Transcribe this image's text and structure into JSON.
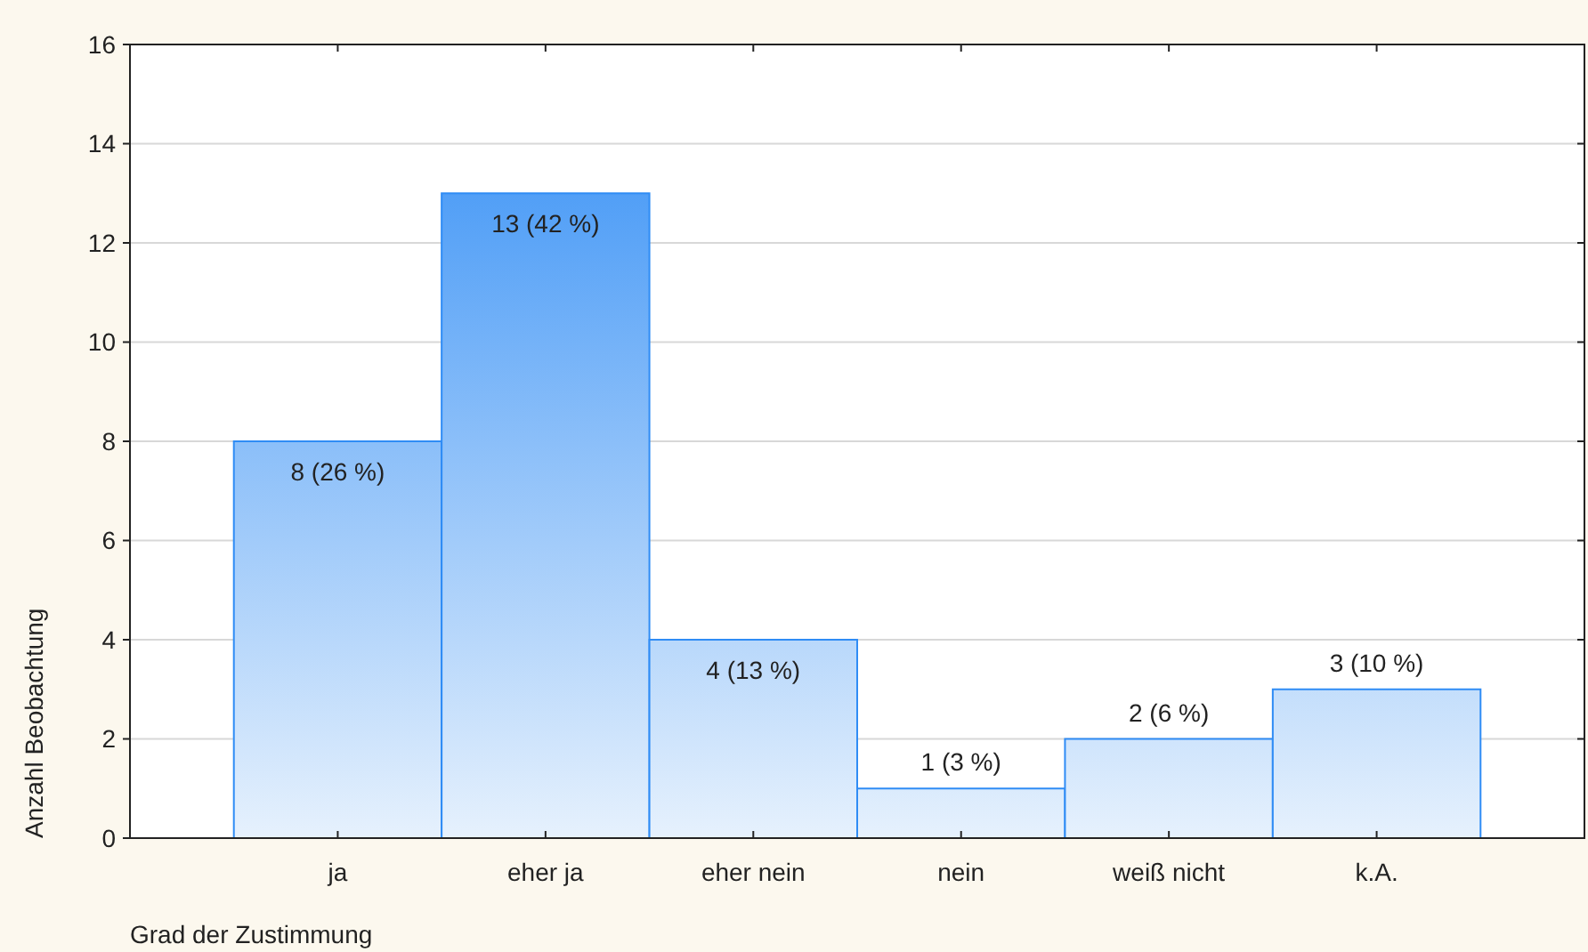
{
  "chart_data": {
    "type": "bar",
    "xlabel": "Grad der Zustimmung",
    "ylabel": "Anzahl Beobachtung",
    "categories": [
      "ja",
      "eher ja",
      "eher nein",
      "nein",
      "weiß nicht",
      "k.A."
    ],
    "values": [
      8,
      13,
      4,
      1,
      2,
      3
    ],
    "value_labels": [
      "8 (26 %)",
      "13 (42 %)",
      "4 (13 %)",
      "1 (3 %)",
      "2 (6 %)",
      "3 (10 %)"
    ],
    "color": "#2f8cf5",
    "ylim": [
      0,
      16
    ],
    "yticks": [
      0,
      2,
      4,
      6,
      8,
      10,
      12,
      14,
      16
    ],
    "grid": "y"
  }
}
